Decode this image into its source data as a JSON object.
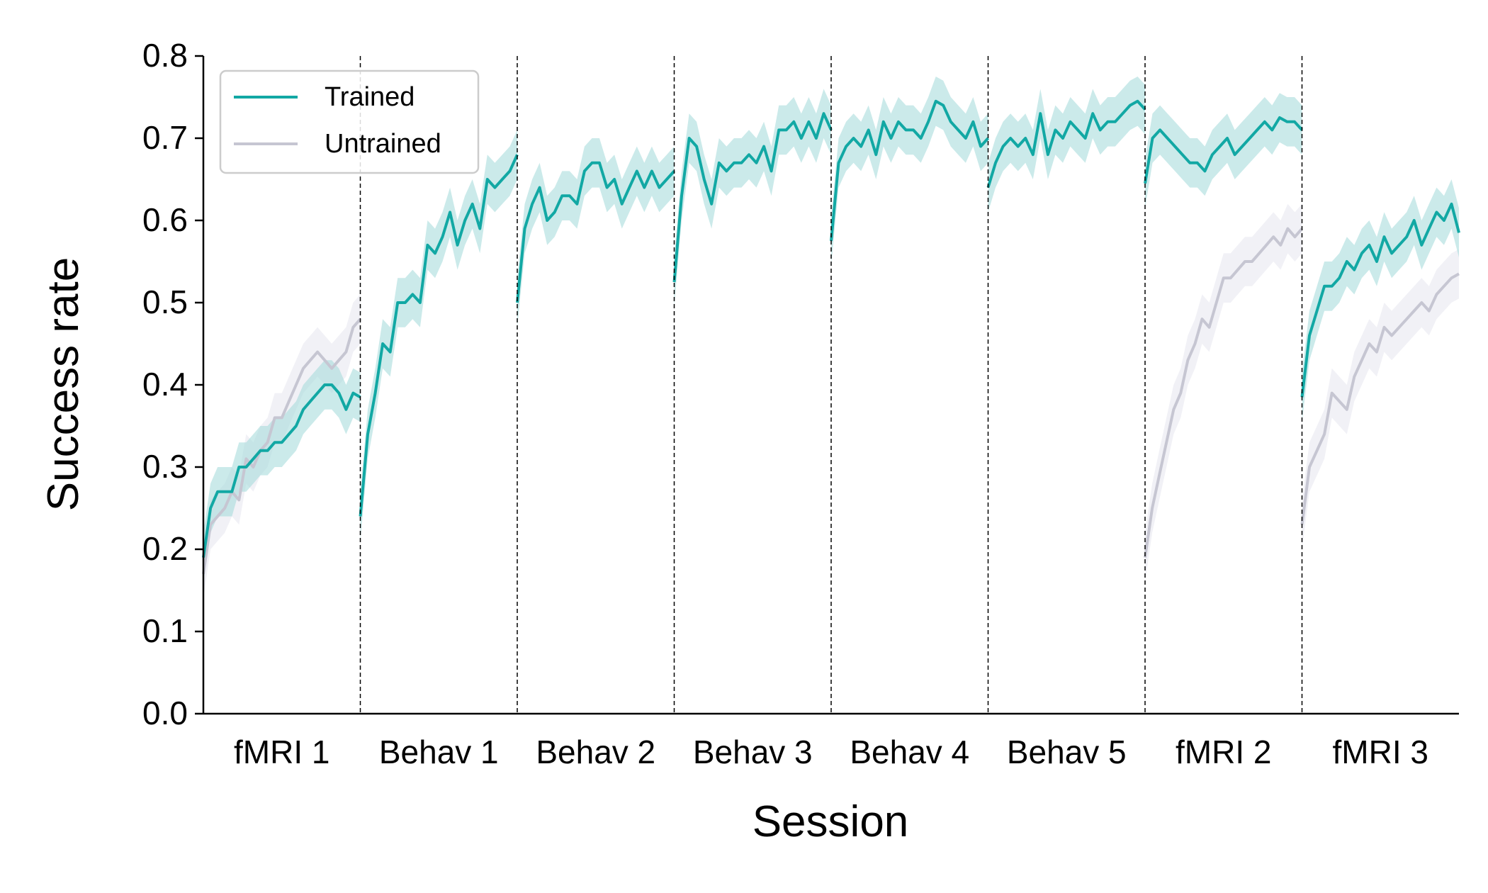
{
  "chart_data": {
    "type": "line",
    "xlabel": "Session",
    "ylabel": "Success rate",
    "ylim": [
      0.0,
      0.8
    ],
    "yticks": [
      "0.0",
      "0.1",
      "0.2",
      "0.3",
      "0.4",
      "0.5",
      "0.6",
      "0.7",
      "0.8"
    ],
    "categories": [
      "fMRI 1",
      "Behav 1",
      "Behav 2",
      "Behav 3",
      "Behav 4",
      "Behav 5",
      "fMRI 2",
      "fMRI 3"
    ],
    "grid": false,
    "legend_position": "top-left",
    "colors": {
      "trained": "#12a8a4",
      "trained_band": "#a8dcdc",
      "untrained": "#c6c6d2",
      "untrained_band": "#e6e6ee"
    },
    "series": [
      {
        "name": "Trained",
        "band": 0.03,
        "sessions": [
          [
            0.19,
            0.25,
            0.27,
            0.27,
            0.27,
            0.3,
            0.3,
            0.31,
            0.32,
            0.32,
            0.33,
            0.33,
            0.34,
            0.35,
            0.37,
            0.38,
            0.39,
            0.4,
            0.4,
            0.39,
            0.37,
            0.39,
            0.385
          ],
          [
            0.24,
            0.34,
            0.39,
            0.45,
            0.44,
            0.5,
            0.5,
            0.51,
            0.5,
            0.57,
            0.56,
            0.58,
            0.61,
            0.57,
            0.6,
            0.62,
            0.59,
            0.65,
            0.64,
            0.65,
            0.66,
            0.68
          ],
          [
            0.5,
            0.59,
            0.62,
            0.64,
            0.6,
            0.61,
            0.63,
            0.63,
            0.62,
            0.66,
            0.67,
            0.67,
            0.64,
            0.65,
            0.62,
            0.64,
            0.66,
            0.64,
            0.66,
            0.64,
            0.65,
            0.66
          ],
          [
            0.525,
            0.63,
            0.7,
            0.69,
            0.65,
            0.62,
            0.67,
            0.66,
            0.67,
            0.67,
            0.68,
            0.67,
            0.69,
            0.66,
            0.71,
            0.71,
            0.72,
            0.7,
            0.72,
            0.7,
            0.73,
            0.71
          ],
          [
            0.575,
            0.67,
            0.69,
            0.7,
            0.69,
            0.71,
            0.68,
            0.72,
            0.7,
            0.72,
            0.71,
            0.71,
            0.7,
            0.72,
            0.745,
            0.74,
            0.72,
            0.71,
            0.7,
            0.72,
            0.69,
            0.7
          ],
          [
            0.64,
            0.67,
            0.69,
            0.7,
            0.69,
            0.7,
            0.68,
            0.73,
            0.68,
            0.71,
            0.7,
            0.72,
            0.71,
            0.7,
            0.73,
            0.71,
            0.72,
            0.72,
            0.73,
            0.74,
            0.745,
            0.735
          ],
          [
            0.645,
            0.7,
            0.71,
            0.7,
            0.69,
            0.68,
            0.67,
            0.67,
            0.66,
            0.68,
            0.69,
            0.7,
            0.68,
            0.69,
            0.7,
            0.71,
            0.72,
            0.71,
            0.725,
            0.72,
            0.72,
            0.71
          ],
          [
            0.385,
            0.46,
            0.49,
            0.52,
            0.52,
            0.53,
            0.55,
            0.54,
            0.56,
            0.57,
            0.55,
            0.58,
            0.56,
            0.57,
            0.58,
            0.6,
            0.57,
            0.59,
            0.61,
            0.6,
            0.62,
            0.585
          ]
        ]
      },
      {
        "name": "Untrained",
        "band": 0.03,
        "sessions": [
          [
            0.17,
            0.23,
            0.24,
            0.25,
            0.27,
            0.26,
            0.31,
            0.3,
            0.32,
            0.33,
            0.36,
            0.36,
            0.38,
            0.4,
            0.42,
            0.43,
            0.44,
            0.43,
            0.42,
            0.43,
            0.44,
            0.47,
            0.48
          ],
          null,
          null,
          null,
          null,
          null,
          [
            0.19,
            0.25,
            0.29,
            0.33,
            0.37,
            0.39,
            0.43,
            0.45,
            0.48,
            0.47,
            0.5,
            0.53,
            0.53,
            0.54,
            0.55,
            0.55,
            0.56,
            0.57,
            0.58,
            0.57,
            0.59,
            0.58,
            0.59
          ],
          [
            0.23,
            0.3,
            0.32,
            0.34,
            0.39,
            0.38,
            0.37,
            0.41,
            0.43,
            0.45,
            0.44,
            0.47,
            0.46,
            0.47,
            0.48,
            0.49,
            0.5,
            0.49,
            0.51,
            0.52,
            0.53,
            0.535
          ]
        ]
      }
    ]
  }
}
